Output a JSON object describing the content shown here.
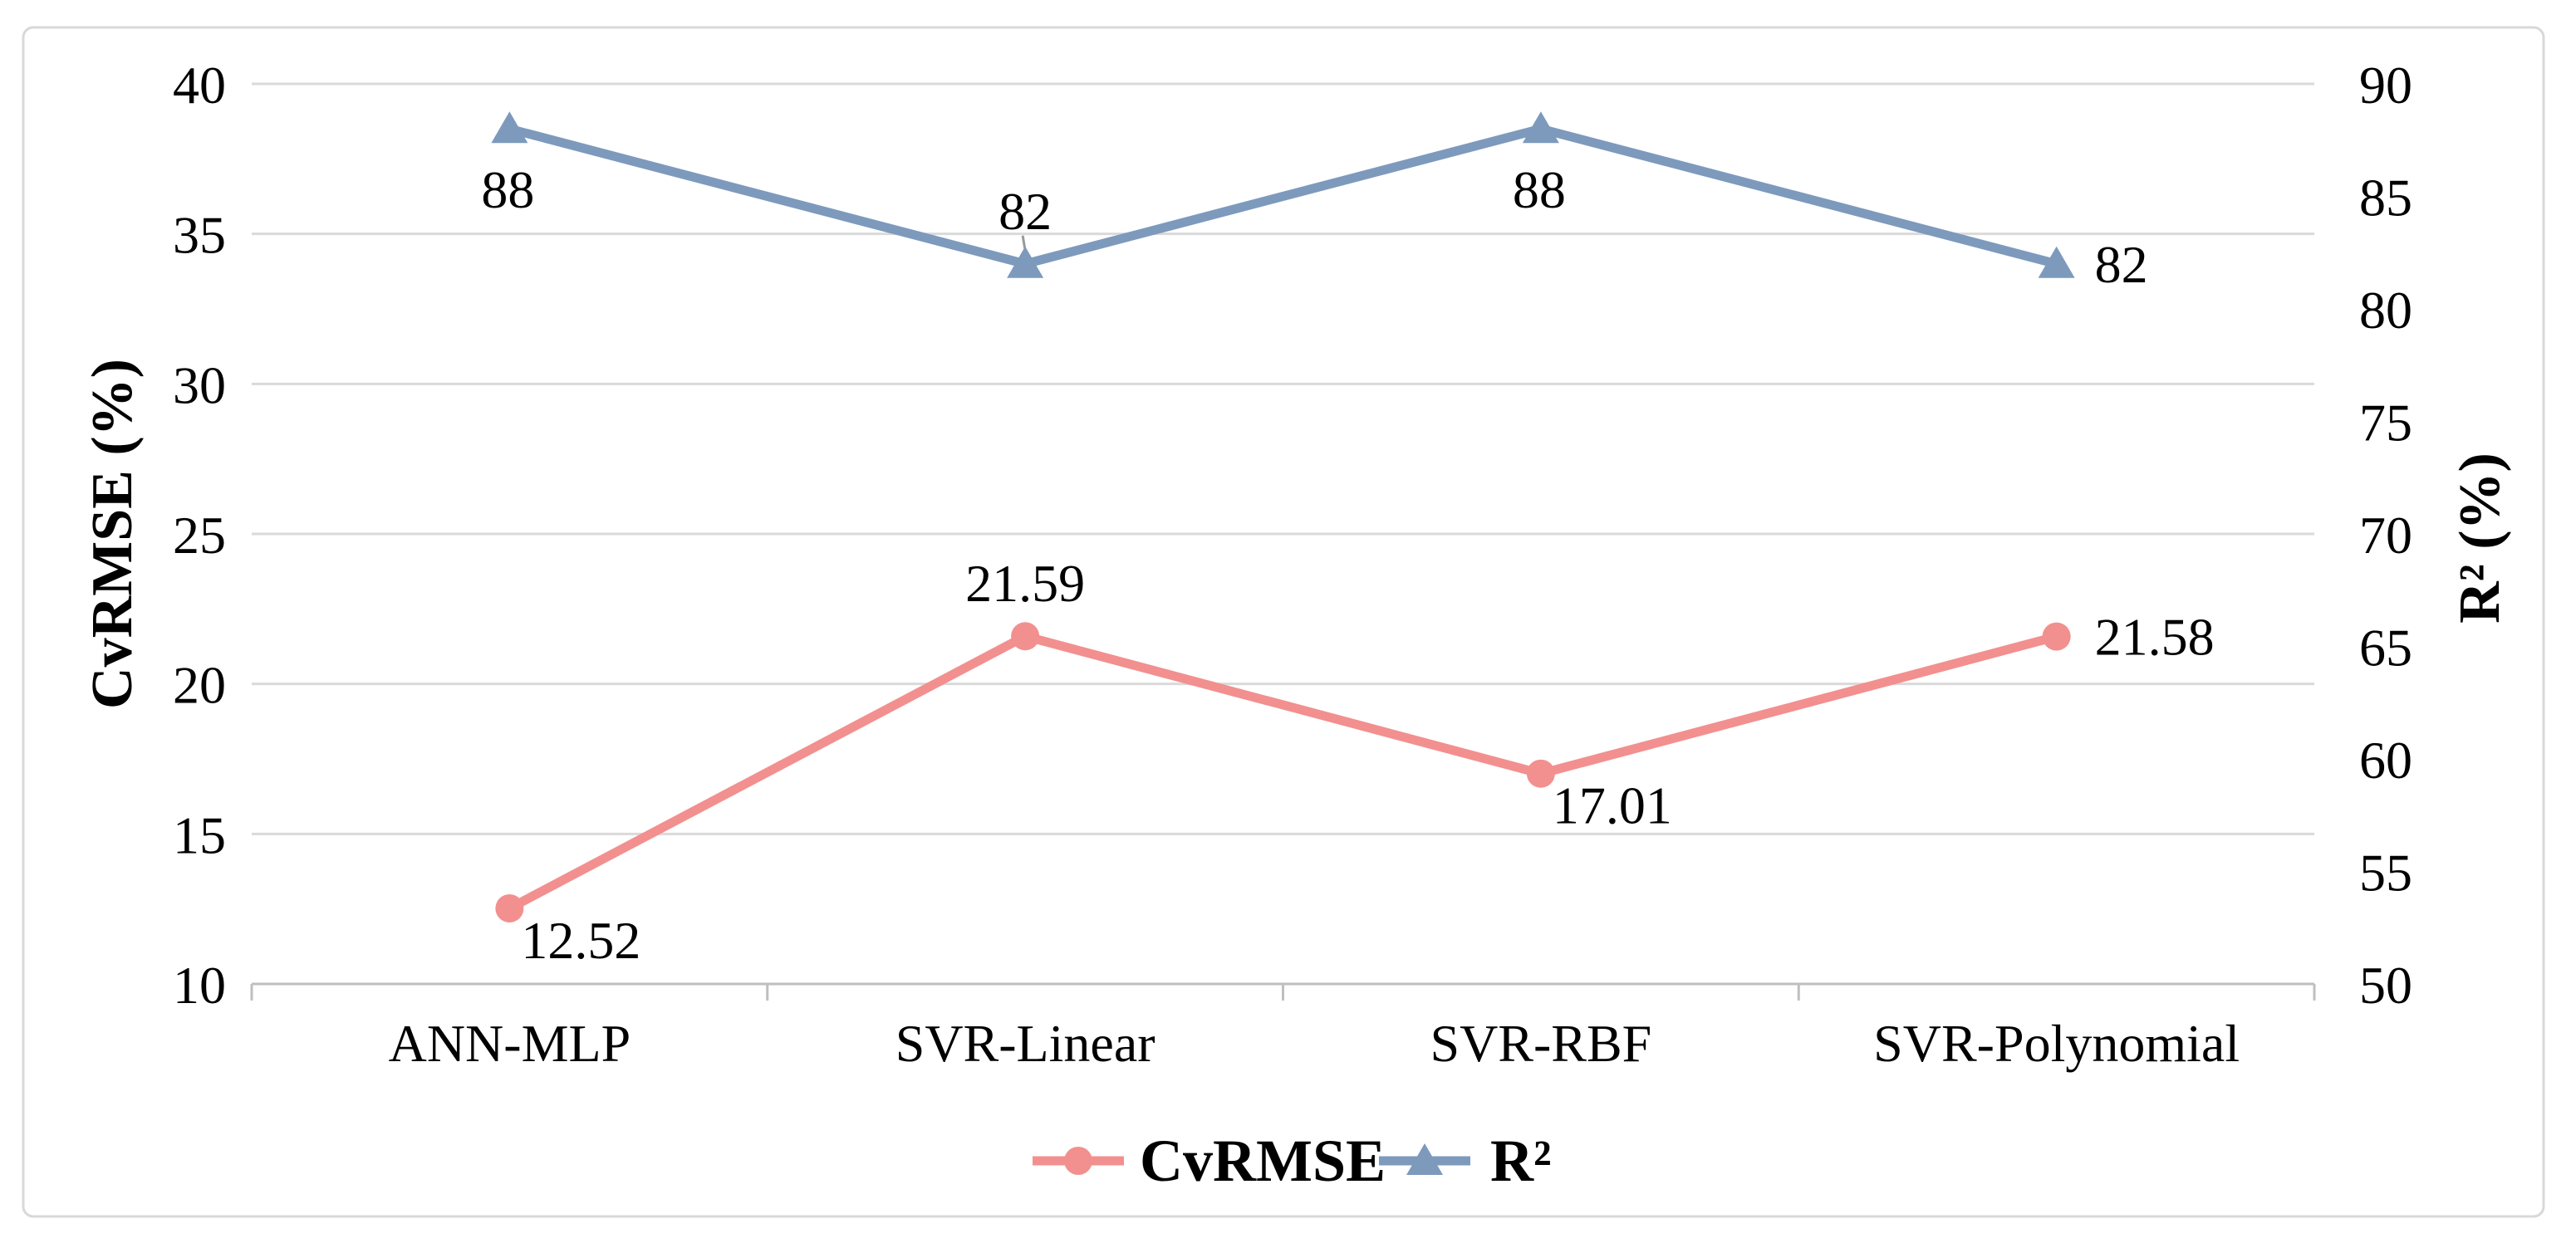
{
  "chart_data": {
    "type": "line",
    "title": "",
    "categories": [
      "ANN-MLP",
      "SVR-Linear",
      "SVR-RBF",
      "SVR-Polynomial"
    ],
    "series": [
      {
        "name": "CvRMSE",
        "axis": "left",
        "marker": "circle",
        "color": "#F2908F",
        "values": [
          12.52,
          21.59,
          17.01,
          21.58
        ],
        "data_labels": [
          {
            "text": "12.52",
            "pos": "below-right"
          },
          {
            "text": "21.59",
            "pos": "above"
          },
          {
            "text": "17.01",
            "pos": "below-right"
          },
          {
            "text": "21.58",
            "pos": "right"
          }
        ]
      },
      {
        "name": "R²",
        "axis": "right",
        "marker": "triangle-up",
        "color": "#7D9ABD",
        "values": [
          88,
          82,
          88,
          82
        ],
        "data_labels": [
          {
            "text": "88",
            "pos": "below"
          },
          {
            "text": "82",
            "pos": "above",
            "leader": true
          },
          {
            "text": "88",
            "pos": "below"
          },
          {
            "text": "82",
            "pos": "right"
          }
        ]
      }
    ],
    "left_axis": {
      "title": "CvRMSE (%)",
      "min": 10,
      "max": 40,
      "step": 5,
      "tick_labels": [
        "40",
        "35",
        "30",
        "25",
        "20",
        "15",
        "10"
      ]
    },
    "right_axis": {
      "title": "R² (%)",
      "min": 50,
      "max": 90,
      "step": 5,
      "tick_labels": [
        "90",
        "85",
        "80",
        "75",
        "70",
        "65",
        "60",
        "55",
        "50"
      ]
    },
    "legend": {
      "position": "bottom-center",
      "entries": [
        "CvRMSE",
        "R²"
      ]
    },
    "grid": "horizontal",
    "styles": {
      "background": "#FFFFFF",
      "frame_border_color": "#D8D8D8",
      "gridline_color": "#DADADA",
      "axis_line_color": "#BFBFBF",
      "text_color": "#000000",
      "leader_line_color": "#999999"
    }
  }
}
